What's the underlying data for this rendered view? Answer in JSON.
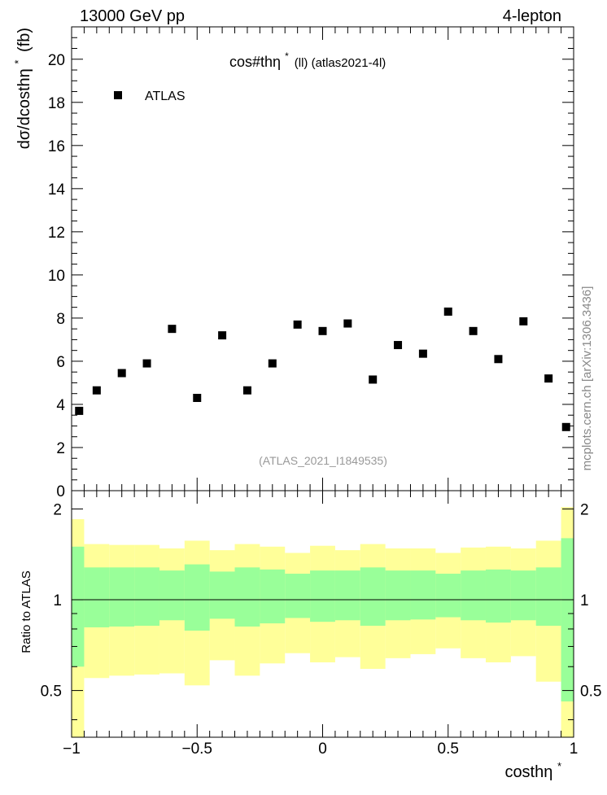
{
  "header": {
    "left": "13000 GeV pp",
    "right": "4-lepton",
    "plot_title_main": "cos#thη",
    "plot_title_sup": "*",
    "plot_title_rest": "(ll) (atlas2021-4l)",
    "watermark": "mcplots.cern.ch [arXiv:1306.3436]",
    "analysis_id": "(ATLAS_2021_I1849535)"
  },
  "chart_data": [
    {
      "type": "scatter",
      "ylabel_main": "dσ/dcosthη",
      "ylabel_sup": "*",
      "ylabel_unit": "(fb)",
      "ylim": [
        0,
        21.5
      ],
      "xlim": [
        -1.0,
        1.0
      ],
      "yticks": [
        "0",
        "2",
        "4",
        "6",
        "8",
        "10",
        "12",
        "14",
        "16",
        "18",
        "20"
      ],
      "legend": {
        "label": "ATLAS",
        "position": "top-left"
      },
      "series": [
        {
          "name": "ATLAS",
          "x": [
            -0.97,
            -0.9,
            -0.8,
            -0.7,
            -0.6,
            -0.5,
            -0.4,
            -0.3,
            -0.2,
            -0.1,
            0.0,
            0.1,
            0.2,
            0.3,
            0.4,
            0.5,
            0.6,
            0.7,
            0.8,
            0.9,
            0.97
          ],
          "y": [
            3.7,
            4.65,
            5.45,
            5.9,
            7.5,
            4.3,
            7.2,
            4.65,
            5.9,
            7.7,
            7.4,
            7.75,
            5.15,
            6.75,
            6.35,
            8.3,
            7.4,
            6.1,
            7.85,
            5.2,
            2.95
          ]
        }
      ]
    },
    {
      "type": "area",
      "ylabel": "Ratio to ATLAS",
      "xlabel_main": "costhη",
      "xlabel_sup": "*",
      "xlim": [
        -1.0,
        1.0
      ],
      "ylim": [
        0.35,
        2.3
      ],
      "yticks": [
        "0.5",
        "1",
        "2"
      ],
      "xticks": [
        "−1",
        "−0.5",
        "0",
        "0.5",
        "1"
      ],
      "reference_line": 1.0,
      "bins": [
        [
          -1.0,
          -0.95
        ],
        [
          -0.95,
          -0.85
        ],
        [
          -0.85,
          -0.75
        ],
        [
          -0.75,
          -0.65
        ],
        [
          -0.65,
          -0.55
        ],
        [
          -0.55,
          -0.45
        ],
        [
          -0.45,
          -0.35
        ],
        [
          -0.35,
          -0.25
        ],
        [
          -0.25,
          -0.15
        ],
        [
          -0.15,
          -0.05
        ],
        [
          -0.05,
          0.05
        ],
        [
          0.05,
          0.15
        ],
        [
          0.15,
          0.25
        ],
        [
          0.25,
          0.35
        ],
        [
          0.35,
          0.45
        ],
        [
          0.45,
          0.55
        ],
        [
          0.55,
          0.65
        ],
        [
          0.65,
          0.75
        ],
        [
          0.75,
          0.85
        ],
        [
          0.85,
          0.95
        ],
        [
          0.95,
          1.0
        ]
      ],
      "series": [
        {
          "name": "total uncertainty",
          "color": "#ffff99",
          "low": [
            0.3,
            0.55,
            0.56,
            0.565,
            0.57,
            0.52,
            0.63,
            0.56,
            0.615,
            0.665,
            0.62,
            0.645,
            0.59,
            0.64,
            0.66,
            0.69,
            0.64,
            0.62,
            0.65,
            0.535,
            0.3
          ],
          "high": [
            1.85,
            1.53,
            1.52,
            1.52,
            1.48,
            1.57,
            1.46,
            1.53,
            1.5,
            1.43,
            1.51,
            1.46,
            1.53,
            1.48,
            1.48,
            1.43,
            1.49,
            1.5,
            1.48,
            1.57,
            2.03
          ]
        },
        {
          "name": "statistical uncertainty",
          "color": "#99ff99",
          "low": [
            0.6,
            0.81,
            0.815,
            0.82,
            0.855,
            0.79,
            0.865,
            0.815,
            0.835,
            0.87,
            0.845,
            0.855,
            0.82,
            0.855,
            0.86,
            0.875,
            0.855,
            0.84,
            0.855,
            0.82,
            0.46
          ],
          "high": [
            1.5,
            1.28,
            1.28,
            1.28,
            1.25,
            1.31,
            1.24,
            1.28,
            1.26,
            1.22,
            1.25,
            1.25,
            1.28,
            1.25,
            1.25,
            1.22,
            1.25,
            1.26,
            1.25,
            1.28,
            1.6
          ]
        }
      ]
    }
  ]
}
